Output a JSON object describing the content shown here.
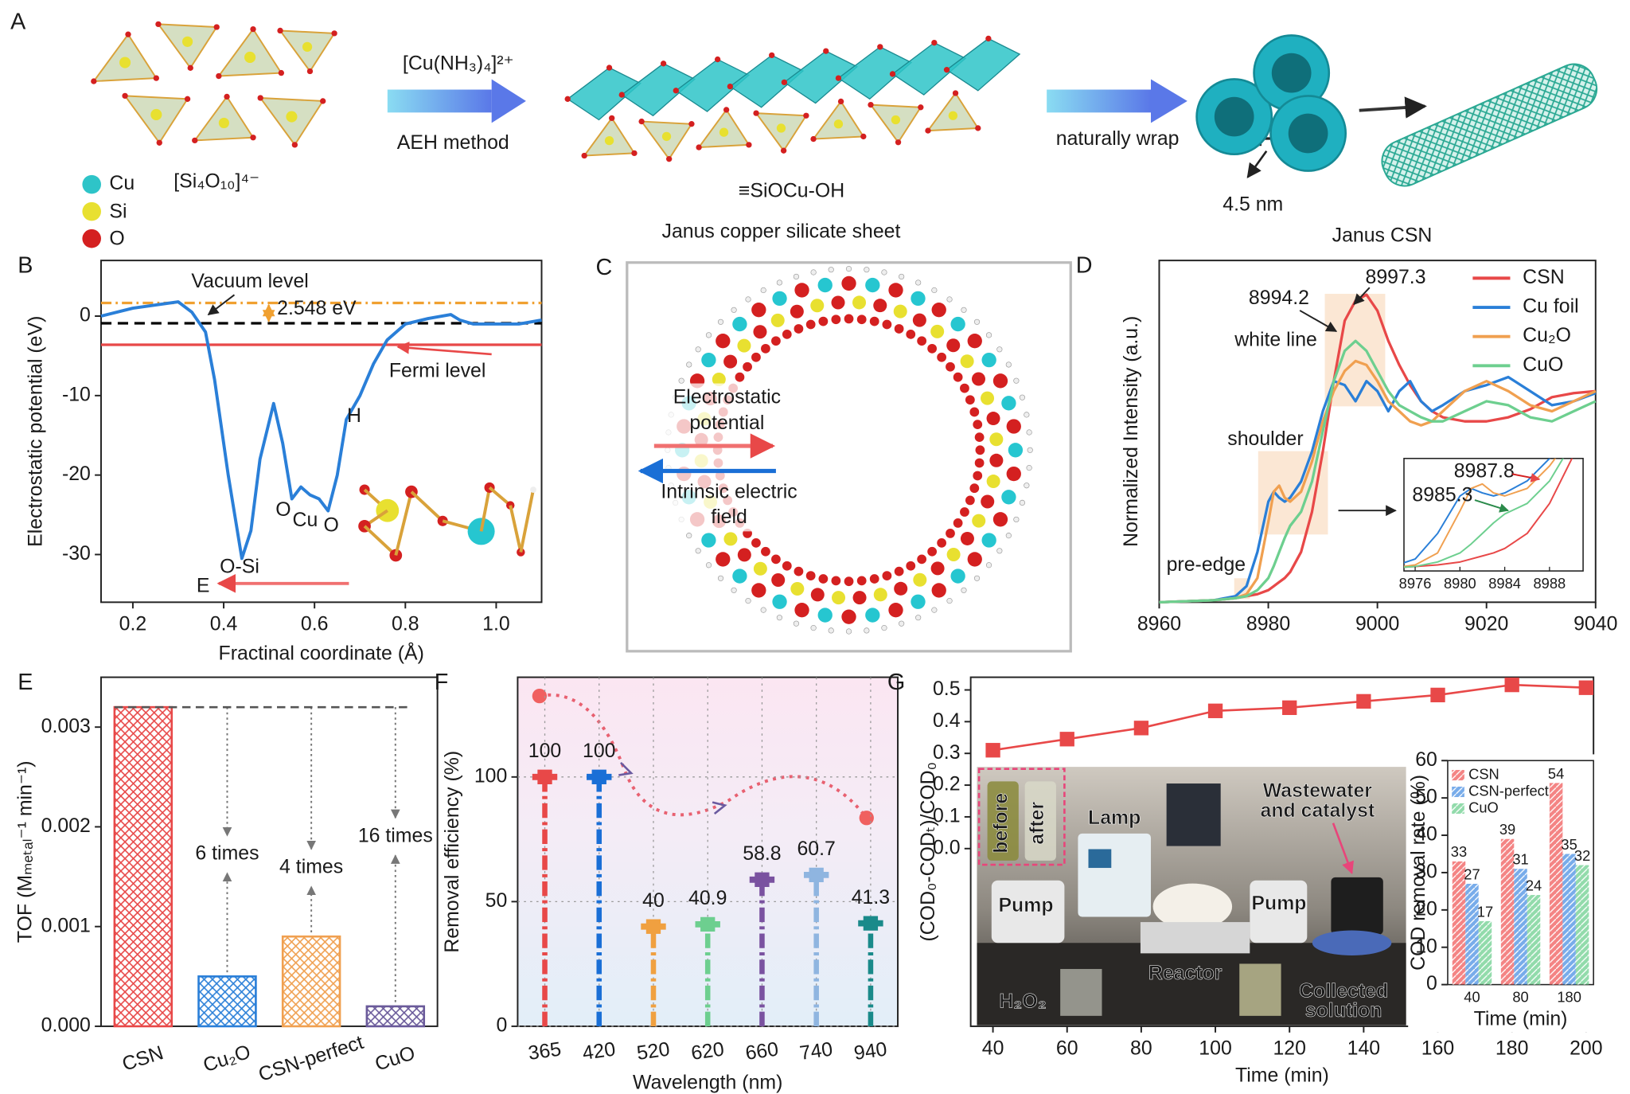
{
  "panel_a": {
    "label": "A",
    "reagent": "[Cu(NH₃)₄]²⁺",
    "method": "AEH method",
    "unit": "[Si₄O₁₀]⁴⁻",
    "legend": [
      "Cu",
      "Si",
      "O"
    ],
    "sheet_formula": "≡SiOCu-OH",
    "sheet_caption": "Janus copper silicate sheet",
    "wrap": "naturally wrap",
    "diameter": "4.5 nm",
    "product": "Janus CSN"
  },
  "panel_c": {
    "label": "C",
    "potential": [
      "Electrostatic",
      "potential"
    ],
    "field": [
      "Intrinsic electric",
      "field"
    ]
  },
  "chart_data": [
    {
      "panel_label": "B",
      "type": "line",
      "x_label": "Fractinal coordinate (Å)",
      "y_label": "Electrostatic potential (eV)",
      "xlim": [
        0.13,
        1.1
      ],
      "xticks": [
        0.2,
        0.4,
        0.6,
        0.8,
        {
          "value": 1,
          "label": "1.0"
        }
      ],
      "ylim": [
        -36,
        7
      ],
      "yticks": [
        -30,
        -20,
        -10,
        0
      ],
      "x": [
        0.13,
        0.2,
        0.3,
        0.33,
        0.36,
        0.38,
        0.41,
        0.44,
        0.46,
        0.48,
        0.51,
        0.53,
        0.55,
        0.57,
        0.59,
        0.61,
        0.63,
        0.65,
        0.67,
        0.7,
        0.73,
        0.76,
        0.8,
        0.85,
        0.9,
        0.92,
        0.95,
        1.05,
        1.1
      ],
      "series": [
        {
          "color": "#2a7fd8",
          "values": [
            0,
            1,
            1.8,
            0.5,
            -2,
            -8,
            -20,
            -30.5,
            -27,
            -18,
            -11,
            -16,
            -23,
            -21.5,
            -22.5,
            -23,
            -24.5,
            -20,
            -13,
            -10,
            -6,
            -3,
            -1,
            -0.3,
            0.2,
            -0.5,
            -1,
            -1,
            -0.5
          ]
        }
      ],
      "reference_lines": [
        {
          "name": "Vacuum level",
          "value": -0.9,
          "color": "#000000"
        },
        {
          "name": "Fermi level",
          "value": -3.6,
          "color": "#e84848"
        },
        {
          "value": 1.65,
          "color": "#f0a030"
        }
      ],
      "annotations": [
        "2.548 eV",
        "H",
        "O-Si",
        "O",
        "Cu",
        "O",
        "E"
      ]
    },
    {
      "panel_label": "D",
      "type": "line",
      "y_label": "Normalized Intensity (a.u.)",
      "xlim": [
        8960,
        9040
      ],
      "xticks": [
        8960,
        8980,
        9000,
        9020,
        9040
      ],
      "ylim": [
        0,
        1.7
      ],
      "legend": "upper right",
      "x": [
        8960,
        8970,
        8974,
        8976,
        8978,
        8980,
        8981,
        8982,
        8983,
        8984,
        8986,
        8988,
        8990,
        8992,
        8994,
        8996,
        8998,
        9000,
        9002,
        9004,
        9006,
        9008,
        9010,
        9012,
        9016,
        9020,
        9024,
        9028,
        9032,
        9036,
        9040
      ],
      "series": [
        {
          "name": "CSN",
          "color": "#e84848",
          "values": [
            0,
            0.01,
            0.02,
            0.03,
            0.04,
            0.06,
            0.08,
            0.1,
            0.12,
            0.15,
            0.25,
            0.45,
            0.75,
            1.1,
            1.4,
            1.5,
            1.53,
            1.45,
            1.3,
            1.18,
            1.08,
            1.0,
            0.95,
            0.92,
            0.9,
            0.9,
            0.92,
            0.96,
            1.02,
            1.04,
            1.05
          ]
        },
        {
          "name": "Cu foil",
          "color": "#2a7fd8",
          "values": [
            0,
            0.01,
            0.03,
            0.08,
            0.25,
            0.5,
            0.55,
            0.52,
            0.5,
            0.52,
            0.6,
            0.75,
            0.95,
            1.1,
            1.08,
            1.0,
            1.1,
            1.05,
            0.95,
            1.05,
            1.1,
            1.0,
            0.95,
            0.98,
            1.05,
            1.08,
            1.12,
            1.05,
            0.98,
            1.0,
            1.04
          ]
        },
        {
          "name": "Cu₂O",
          "color": "#f0a050",
          "values": [
            0,
            0.01,
            0.02,
            0.04,
            0.12,
            0.4,
            0.55,
            0.58,
            0.52,
            0.5,
            0.55,
            0.7,
            0.9,
            1.05,
            1.15,
            1.2,
            1.18,
            1.1,
            1.0,
            0.95,
            0.9,
            0.88,
            0.9,
            0.95,
            1.05,
            1.1,
            1.05,
            0.98,
            0.95,
            1.0,
            1.05
          ]
        },
        {
          "name": "CuO",
          "color": "#6dcf8f",
          "values": [
            0,
            0.01,
            0.02,
            0.03,
            0.06,
            0.12,
            0.18,
            0.25,
            0.32,
            0.38,
            0.45,
            0.6,
            0.85,
            1.1,
            1.25,
            1.3,
            1.25,
            1.15,
            1.05,
            0.98,
            0.95,
            0.92,
            0.9,
            0.9,
            0.95,
            1.0,
            0.98,
            0.92,
            0.9,
            0.95,
            1.0
          ]
        }
      ],
      "annotations": [
        "8994.2",
        "8997.3",
        "white line",
        "shoulder",
        "pre-edge"
      ],
      "inset": {
        "xlim": [
          8975,
          8991
        ],
        "ylim": [
          0,
          0.75
        ],
        "xticks": [
          8976,
          8980,
          8984,
          8988
        ],
        "annotations": [
          "8987.8",
          "8985.3"
        ]
      }
    },
    {
      "panel_label": "E",
      "type": "bar",
      "y_label": "TOF (Mₘₑₜₐₗ⁻¹ min⁻¹)",
      "categories": [
        "CSN",
        "Cu₂O",
        "CSN-perfect",
        "CuO"
      ],
      "values": [
        0.0032,
        0.0005,
        0.0009,
        0.0002
      ],
      "colors": [
        "#e84848",
        "#2a7fd8",
        "#f0a050",
        "#6a5a9a"
      ],
      "ylim": [
        0,
        0.0035
      ],
      "yticks": [
        {
          "value": 0,
          "label": "0.000"
        },
        {
          "value": 0.001,
          "label": "0.001"
        },
        {
          "value": 0.002,
          "label": "0.002"
        },
        {
          "value": 0.003,
          "label": "0.003"
        }
      ],
      "annotations": [
        "6 times",
        "4 times",
        "16 times"
      ]
    },
    {
      "panel_label": "F",
      "type": "stem",
      "x_label": "Wavelength (nm)",
      "y_label": "Removal efficiency (%)",
      "categories": [
        "365",
        "420",
        "520",
        "620",
        "660",
        "740",
        "940"
      ],
      "values": [
        100,
        100,
        40,
        40.9,
        58.8,
        60.7,
        41.3
      ],
      "colors": [
        "#e84848",
        "#1a6fd6",
        "#f0a040",
        "#6dcf8f",
        "#7a52a0",
        "#8fb5e0",
        "#1a8a8a"
      ],
      "ylim": [
        0,
        140
      ],
      "yticks": [
        0,
        50,
        100
      ]
    },
    {
      "panel_label": "G",
      "type": "line",
      "x_label": "Time (min)",
      "y_label": "(COD₀-CODₜ)/COD₀",
      "x": [
        40,
        60,
        80,
        100,
        120,
        140,
        160,
        180,
        200
      ],
      "xlim": [
        34,
        202
      ],
      "xticks": [
        40,
        60,
        80,
        100,
        120,
        140,
        160,
        180,
        200
      ],
      "series": [
        {
          "color": "#e84848",
          "values": [
            0.31,
            0.345,
            0.38,
            0.434,
            0.444,
            0.464,
            0.484,
            0.516,
            0.507
          ]
        }
      ],
      "ylim": [
        -0.56,
        0.54
      ],
      "yticks": [
        {
          "value": 0,
          "label": "0.0"
        },
        {
          "value": 0.1,
          "label": "0.1"
        },
        {
          "value": 0.2,
          "label": "0.2"
        },
        {
          "value": 0.3,
          "label": "0.3"
        },
        {
          "value": 0.4,
          "label": "0.4"
        },
        {
          "value": 0.5,
          "label": "0.5"
        }
      ],
      "photo_labels": [
        "before",
        "after",
        "Lamp",
        [
          "Wastewater",
          "and catalyst"
        ],
        "Pump",
        "Pump",
        "Reactor",
        "H₂O₂",
        [
          "Collected",
          "solution"
        ]
      ],
      "inset": {
        "type": "bar",
        "x_label": "Time (min)",
        "y_label": "COD removal rate (%)",
        "categories": [
          "40",
          "80",
          "180"
        ],
        "series": [
          {
            "name": "CSN",
            "color": "#f05a5a",
            "values": [
              33,
              39,
              54
            ]
          },
          {
            "name": "CSN-perfect",
            "color": "#4a90e2",
            "values": [
              27,
              31,
              35
            ]
          },
          {
            "name": "CuO",
            "color": "#6dcf8f",
            "values": [
              17,
              24,
              32
            ]
          }
        ],
        "ylim": [
          0,
          60
        ],
        "yticks": [
          0,
          10,
          20,
          30,
          40,
          50,
          60
        ],
        "legend": "upper left"
      }
    }
  ]
}
